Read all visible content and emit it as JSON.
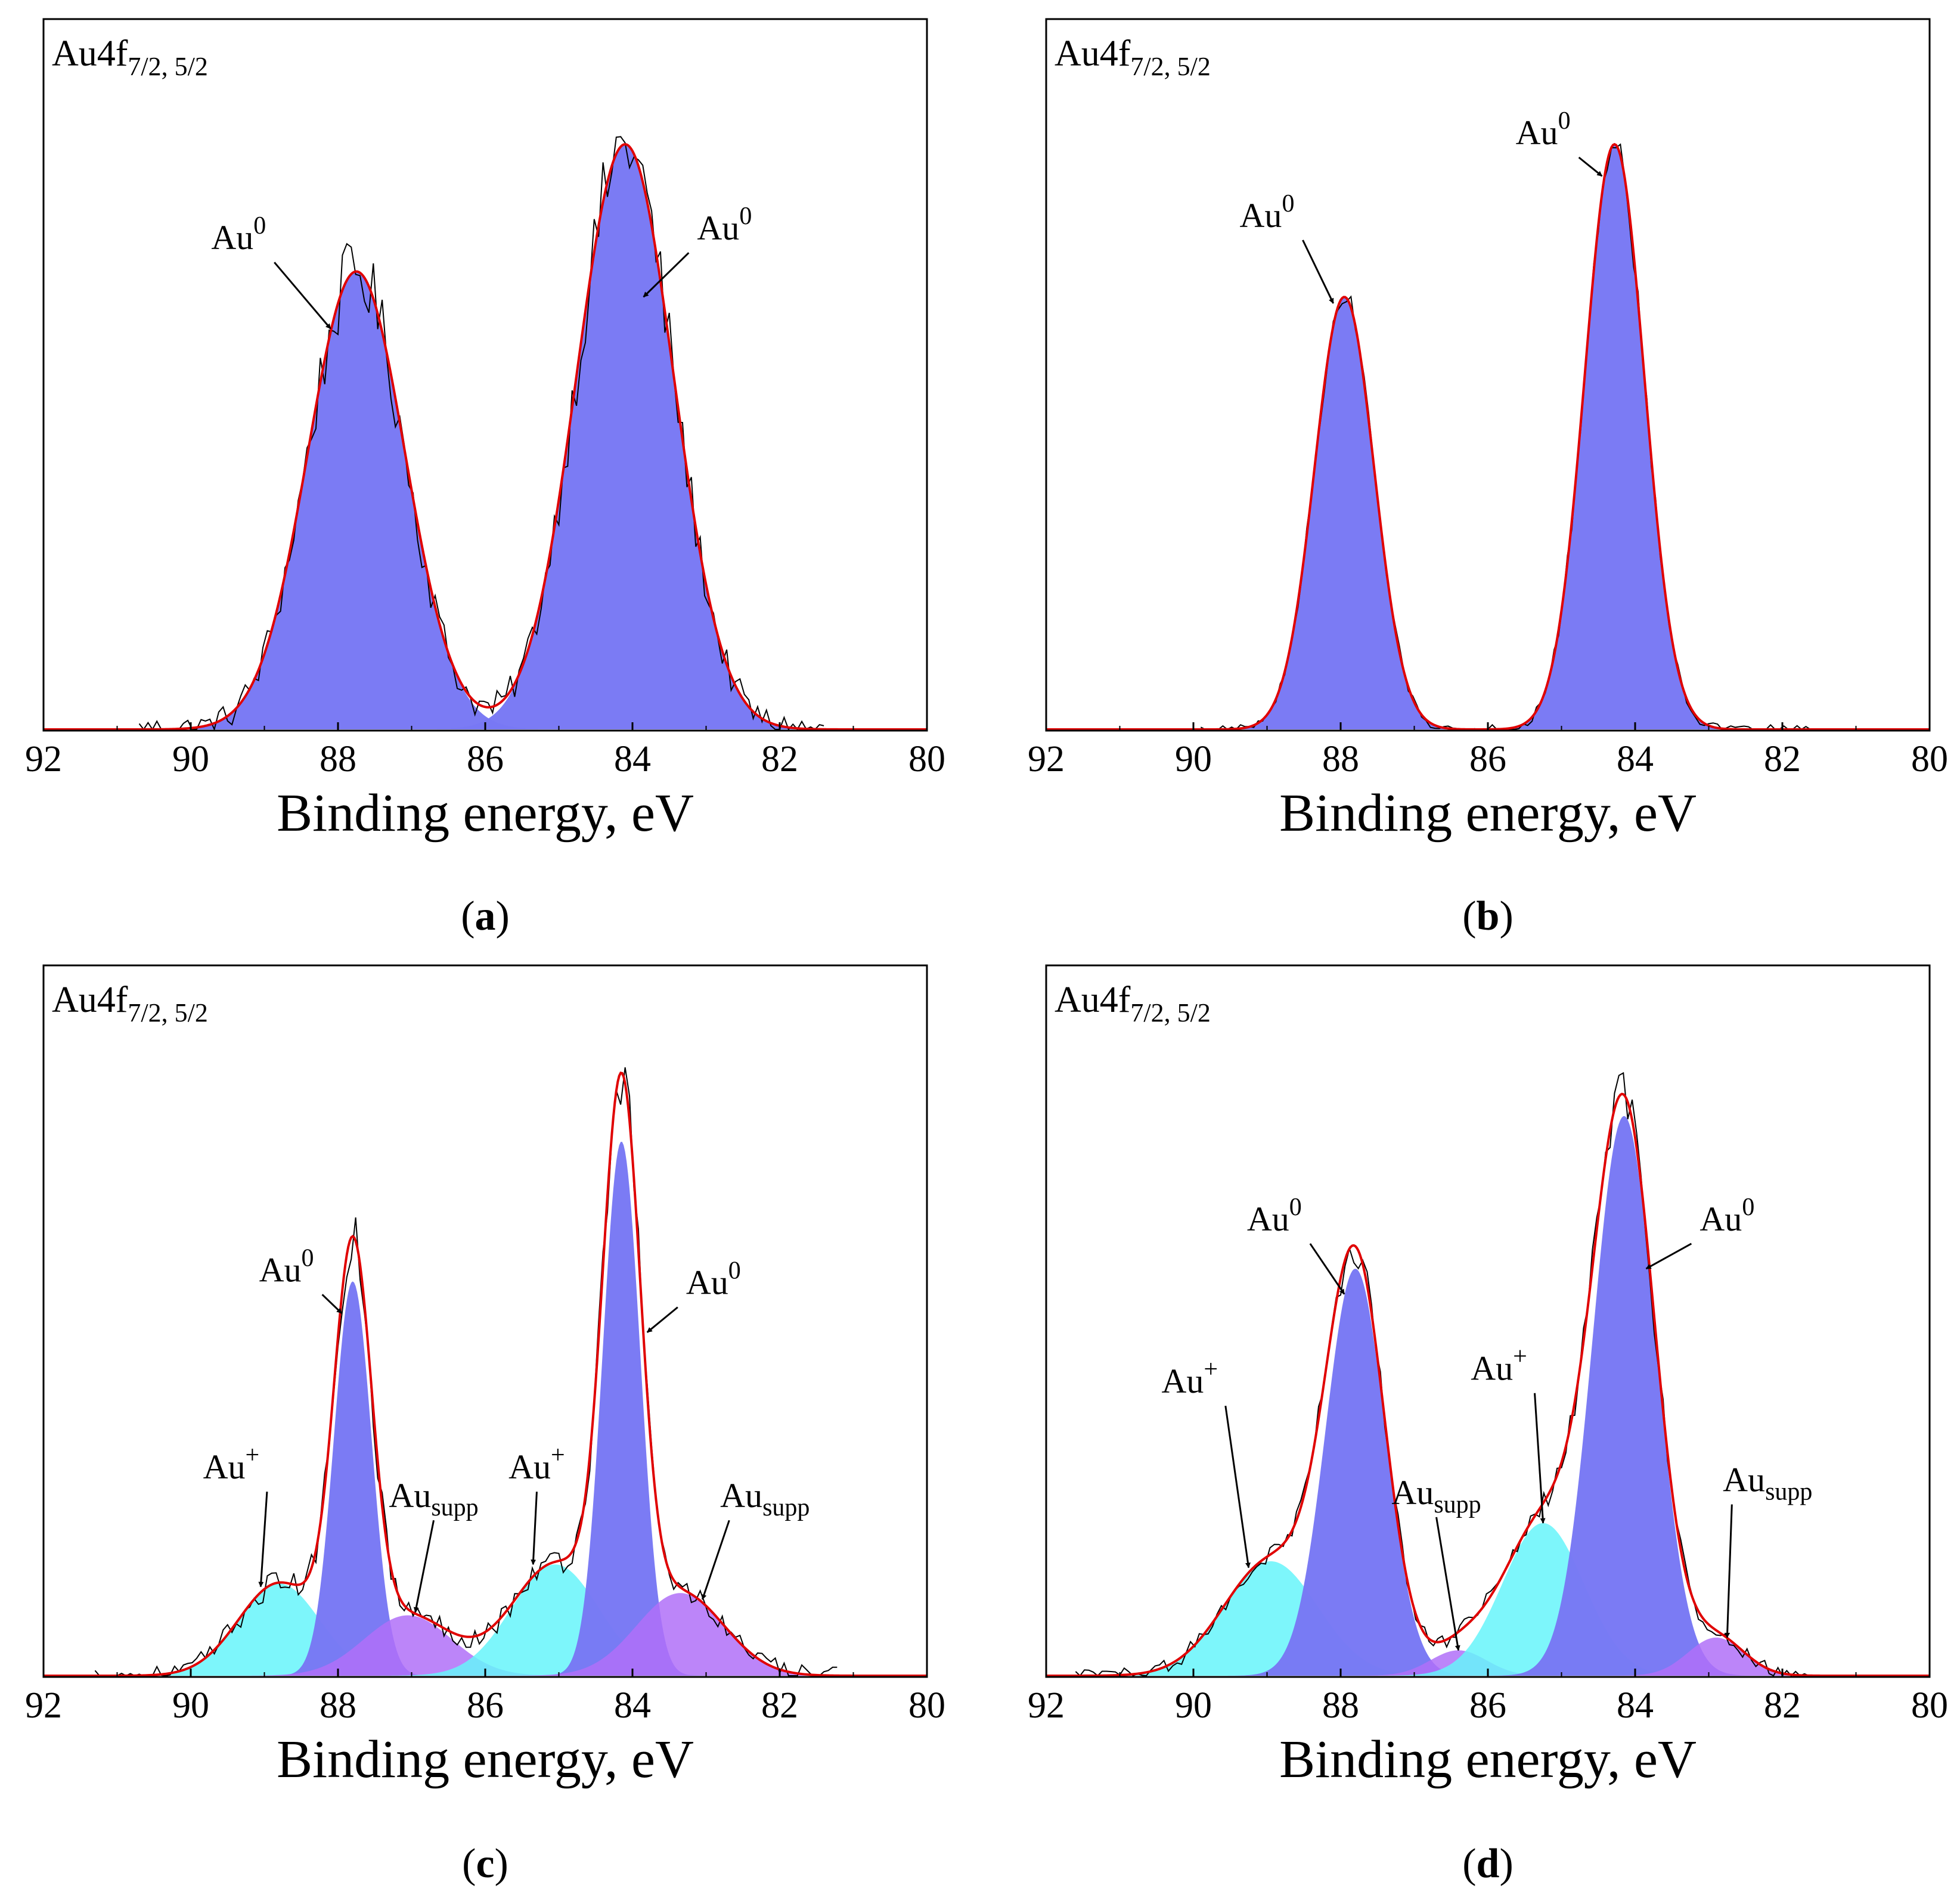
{
  "figure": {
    "xlabel": "Binding energy, eV",
    "colors": {
      "au0": "#7878f4",
      "auplus": "#66f4fa",
      "ausupp": "#b070f8",
      "overlap_plus": "#40b0f4",
      "overlap_supp": "#8050f0",
      "fit": "#e00000",
      "raw": "#000000"
    }
  },
  "chart_data": [
    {
      "type": "area",
      "panel": "a",
      "caption": "a",
      "title_main": "Au4f",
      "title_sub": "7/2, 5/2",
      "xlabel": "Binding energy, eV",
      "xlim": [
        92,
        80
      ],
      "xticks": [
        92,
        90,
        88,
        86,
        84,
        82,
        80
      ],
      "ylabel": "",
      "ylim": [
        0,
        1.1
      ],
      "components": [
        {
          "name": "Au0",
          "kind": "au0",
          "center": 87.75,
          "height": 0.72,
          "fwhm": 1.55
        },
        {
          "name": "Au0",
          "kind": "au0",
          "center": 84.1,
          "height": 0.92,
          "fwhm": 1.55
        }
      ],
      "noise": 0.035,
      "noise_start": 90.7,
      "noise_end": 81.4,
      "annotations": [
        {
          "label": "Au",
          "sup": "0",
          "kind": "sup",
          "text_x": 89.35,
          "text_y": 0.755,
          "arrow_to": [
            88.1,
            0.63
          ]
        },
        {
          "label": "Au",
          "sup": "0",
          "kind": "sup",
          "text_x": 82.75,
          "text_y": 0.77,
          "arrow_to": [
            83.85,
            0.68
          ]
        }
      ]
    },
    {
      "type": "area",
      "panel": "b",
      "caption": "b",
      "title_main": "Au4f",
      "title_sub": "7/2, 5/2",
      "xlabel": "Binding energy, eV",
      "xlim": [
        92,
        80
      ],
      "xticks": [
        92,
        90,
        88,
        86,
        84,
        82,
        80
      ],
      "ylabel": "",
      "ylim": [
        0,
        1.1
      ],
      "components": [
        {
          "name": "Au0",
          "kind": "au0",
          "center": 87.95,
          "height": 0.68,
          "fwhm": 0.95
        },
        {
          "name": "Au0",
          "kind": "au0",
          "center": 84.28,
          "height": 0.92,
          "fwhm": 0.95
        }
      ],
      "noise": 0.012,
      "noise_start": 89.9,
      "noise_end": 81.6,
      "annotations": [
        {
          "label": "Au",
          "sup": "0",
          "kind": "sup",
          "text_x": 89.0,
          "text_y": 0.79,
          "arrow_to": [
            88.1,
            0.67
          ]
        },
        {
          "label": "Au",
          "sup": "0",
          "kind": "sup",
          "text_x": 85.25,
          "text_y": 0.92,
          "arrow_to": [
            84.45,
            0.87
          ]
        }
      ]
    },
    {
      "type": "area",
      "panel": "c",
      "caption": "c",
      "title_main": "Au4f",
      "title_sub": "7/2, 5/2",
      "xlabel": "Binding energy, eV",
      "xlim": [
        92,
        80
      ],
      "xticks": [
        92,
        90,
        88,
        86,
        84,
        82,
        80
      ],
      "ylabel": "",
      "ylim": [
        0,
        1.1
      ],
      "components": [
        {
          "name": "Au+",
          "kind": "auplus",
          "center": 88.8,
          "height": 0.145,
          "fwhm": 1.3
        },
        {
          "name": "Au0",
          "kind": "au0",
          "center": 87.8,
          "height": 0.62,
          "fwhm": 0.6
        },
        {
          "name": "Ausupp",
          "kind": "ausupp",
          "center": 87.05,
          "height": 0.095,
          "fwhm": 1.4
        },
        {
          "name": "Au+",
          "kind": "auplus",
          "center": 85.05,
          "height": 0.175,
          "fwhm": 1.4
        },
        {
          "name": "Au0",
          "kind": "au0",
          "center": 84.15,
          "height": 0.84,
          "fwhm": 0.6
        },
        {
          "name": "Ausupp",
          "kind": "ausupp",
          "center": 83.35,
          "height": 0.13,
          "fwhm": 1.4
        }
      ],
      "noise": 0.025,
      "noise_start": 91.3,
      "noise_end": 81.2,
      "annotations": [
        {
          "label": "Au",
          "sup": "+",
          "kind": "sup",
          "text_x": 89.45,
          "text_y": 0.31,
          "arrow_to": [
            89.05,
            0.14
          ]
        },
        {
          "label": "Au",
          "sup": "0",
          "kind": "sup",
          "text_x": 88.7,
          "text_y": 0.62,
          "arrow_to": [
            87.95,
            0.57
          ]
        },
        {
          "label": "Au",
          "sup": "supp",
          "kind": "sub",
          "text_x": 86.7,
          "text_y": 0.265,
          "arrow_to": [
            86.95,
            0.1
          ]
        },
        {
          "label": "Au",
          "sup": "+",
          "kind": "sup",
          "text_x": 85.3,
          "text_y": 0.31,
          "arrow_to": [
            85.35,
            0.175
          ]
        },
        {
          "label": "Au",
          "sup": "0",
          "kind": "sup",
          "text_x": 82.9,
          "text_y": 0.6,
          "arrow_to": [
            83.8,
            0.54
          ]
        },
        {
          "label": "Au",
          "sup": "supp",
          "kind": "sub",
          "text_x": 82.2,
          "text_y": 0.265,
          "arrow_to": [
            83.05,
            0.12
          ]
        }
      ]
    },
    {
      "type": "area",
      "panel": "d",
      "caption": "d",
      "title_main": "Au4f",
      "title_sub": "7/2, 5/2",
      "xlabel": "Binding energy, eV",
      "xlim": [
        92,
        80
      ],
      "xticks": [
        92,
        90,
        88,
        86,
        84,
        82,
        80
      ],
      "ylabel": "",
      "ylim": [
        0,
        1.1
      ],
      "components": [
        {
          "name": "Au+",
          "kind": "auplus",
          "center": 88.95,
          "height": 0.18,
          "fwhm": 1.5
        },
        {
          "name": "Au0",
          "kind": "au0",
          "center": 87.8,
          "height": 0.64,
          "fwhm": 0.95
        },
        {
          "name": "Ausupp",
          "kind": "ausupp",
          "center": 86.4,
          "height": 0.04,
          "fwhm": 0.9
        },
        {
          "name": "Au+",
          "kind": "auplus",
          "center": 85.25,
          "height": 0.24,
          "fwhm": 1.3
        },
        {
          "name": "Au0",
          "kind": "au0",
          "center": 84.15,
          "height": 0.88,
          "fwhm": 1.0
        },
        {
          "name": "Ausupp",
          "kind": "ausupp",
          "center": 82.9,
          "height": 0.06,
          "fwhm": 0.9
        }
      ],
      "noise": 0.018,
      "noise_start": 91.6,
      "noise_end": 81.6,
      "annotations": [
        {
          "label": "Au",
          "sup": "+",
          "kind": "sup",
          "text_x": 90.05,
          "text_y": 0.445,
          "arrow_to": [
            89.25,
            0.17
          ]
        },
        {
          "label": "Au",
          "sup": "0",
          "kind": "sup",
          "text_x": 88.9,
          "text_y": 0.7,
          "arrow_to": [
            87.95,
            0.6
          ]
        },
        {
          "label": "Au",
          "sup": "supp",
          "kind": "sub",
          "text_x": 86.7,
          "text_y": 0.27,
          "arrow_to": [
            86.4,
            0.04
          ]
        },
        {
          "label": "Au",
          "sup": "+",
          "kind": "sup",
          "text_x": 85.85,
          "text_y": 0.465,
          "arrow_to": [
            85.25,
            0.24
          ]
        },
        {
          "label": "Au",
          "sup": "0",
          "kind": "sup",
          "text_x": 82.75,
          "text_y": 0.7,
          "arrow_to": [
            83.85,
            0.64
          ]
        },
        {
          "label": "Au",
          "sup": "supp",
          "kind": "sub",
          "text_x": 82.2,
          "text_y": 0.29,
          "arrow_to": [
            82.75,
            0.06
          ]
        }
      ]
    }
  ]
}
